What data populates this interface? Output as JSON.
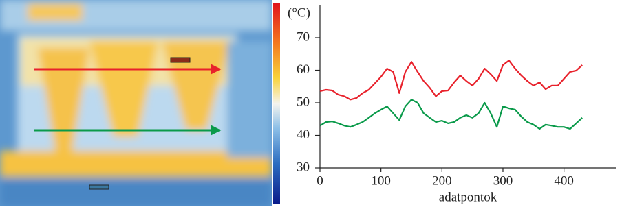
{
  "chart_data": {
    "type": "line",
    "ylabel": "(°C)",
    "xlabel": "adatpontok",
    "x": [
      0,
      10,
      20,
      30,
      40,
      50,
      60,
      70,
      80,
      90,
      100,
      110,
      120,
      130,
      140,
      150,
      160,
      170,
      180,
      190,
      200,
      210,
      220,
      230,
      240,
      250,
      260,
      270,
      280,
      290,
      300,
      310,
      320,
      330,
      340,
      350,
      360,
      370,
      380,
      390,
      400,
      410,
      420,
      430
    ],
    "series": [
      {
        "color": "#e8212b",
        "values": [
          53.6,
          54,
          53.8,
          52.5,
          52,
          51,
          51.5,
          53,
          54,
          56,
          58,
          60.5,
          59.5,
          53,
          59.5,
          62.6,
          59.5,
          56.7,
          54.6,
          52,
          53.6,
          53.8,
          56.3,
          58.4,
          56.7,
          55.3,
          57.4,
          60.5,
          58.8,
          56.7,
          61.6,
          63,
          60.5,
          58.4,
          56.7,
          55.3,
          56.3,
          54.2,
          55.3,
          55.3,
          57.4,
          59.5,
          59.9,
          61.6
        ]
      },
      {
        "color": "#0a9a4a",
        "values": [
          43,
          44.1,
          44.3,
          43.7,
          43,
          42.6,
          43.3,
          44.1,
          45.4,
          46.8,
          47.9,
          48.9,
          46.8,
          44.7,
          48.9,
          51,
          50,
          46.8,
          45.4,
          44.1,
          44.5,
          43.7,
          44.1,
          45.4,
          46.2,
          45.4,
          46.8,
          50,
          46.8,
          42.6,
          48.9,
          48.3,
          47.9,
          45.8,
          44.1,
          43.3,
          42,
          43.3,
          43,
          42.6,
          42.6,
          42,
          43.7,
          45.4
        ]
      }
    ],
    "xlim": [
      0,
      485
    ],
    "xticks": [
      0,
      100,
      200,
      300,
      400
    ],
    "ylim": [
      30,
      80
    ],
    "yticks": [
      30,
      40,
      50,
      60,
      70
    ]
  }
}
